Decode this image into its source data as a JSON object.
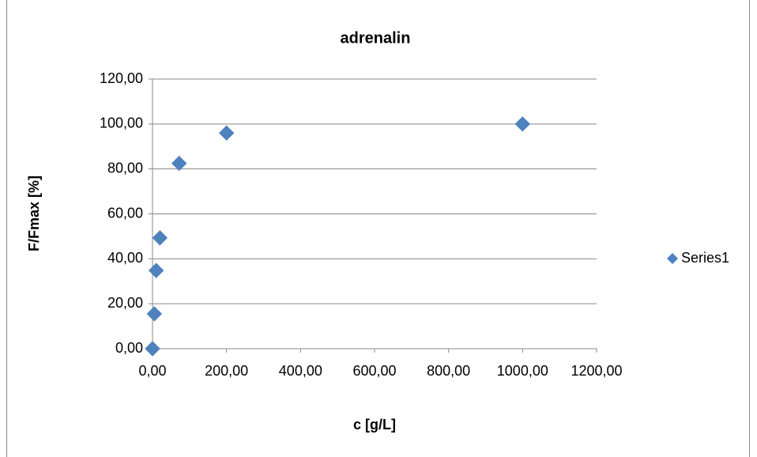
{
  "chart_data": {
    "type": "scatter",
    "title": "adrenalin",
    "x_label": "c [g/L]",
    "y_label": "F/Fmax [%]",
    "series": [
      {
        "name": "Series1",
        "color": "#4f81bd",
        "marker": "diamond",
        "x": [
          0,
          5,
          10,
          20,
          72,
          200,
          1000
        ],
        "values": [
          0,
          15.5,
          34.8,
          49.3,
          82.5,
          96,
          100
        ]
      }
    ],
    "xlim": [
      0,
      1200
    ],
    "xticks": [
      {
        "value": 0,
        "label": "0,00"
      },
      {
        "value": 200,
        "label": "200,00"
      },
      {
        "value": 400,
        "label": "400,00"
      },
      {
        "value": 600,
        "label": "600,00"
      },
      {
        "value": 800,
        "label": "800,00"
      },
      {
        "value": 1000,
        "label": "1000,00"
      },
      {
        "value": 1200,
        "label": "1200,00"
      }
    ],
    "ylim": [
      0,
      120
    ],
    "yticks": [
      {
        "value": 0,
        "label": "0,00"
      },
      {
        "value": 20,
        "label": "20,00"
      },
      {
        "value": 40,
        "label": "40,00"
      },
      {
        "value": 60,
        "label": "60,00"
      },
      {
        "value": 80,
        "label": "80,00"
      },
      {
        "value": 100,
        "label": "100,00"
      },
      {
        "value": 120,
        "label": "120,00"
      }
    ],
    "grid": true,
    "legend": "right"
  }
}
